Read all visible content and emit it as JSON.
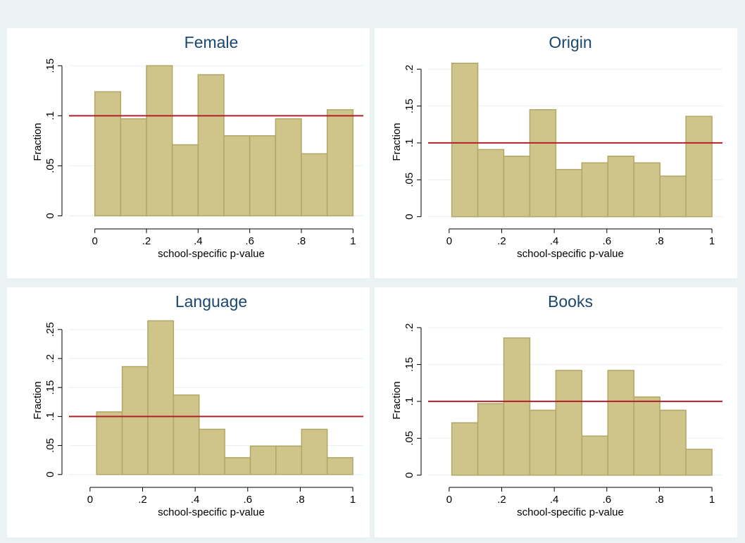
{
  "colors": {
    "figure_background": "#eaf2f3",
    "plot_background": "#ffffff",
    "bar_fill": "#cfc58a",
    "bar_edge": "#b0a766",
    "reference_line": "#b0202a",
    "grid": "#eaf2f3",
    "title": "#1a476f"
  },
  "chart_data": [
    {
      "type": "bar",
      "title": "Female",
      "xlabel": "school-specific p-value",
      "ylabel": "Fraction",
      "xlim": [
        -0.1,
        1.04
      ],
      "ylim": [
        -0.006,
        0.165
      ],
      "xticks": [
        0,
        0.2,
        0.4,
        0.6,
        0.8,
        1
      ],
      "xtick_labels": [
        "0",
        ".2",
        ".4",
        ".6",
        ".8",
        "1"
      ],
      "yticks": [
        0,
        0.05,
        0.1,
        0.15
      ],
      "ytick_labels": [
        "0",
        ".05",
        ".1",
        ".15"
      ],
      "bin_start": 0.0,
      "bin_width": 0.1,
      "values": [
        0.124,
        0.097,
        0.15,
        0.071,
        0.141,
        0.08,
        0.08,
        0.097,
        0.062,
        0.106
      ],
      "reference_line": 0.1,
      "grid": true
    },
    {
      "type": "bar",
      "title": "Origin",
      "xlabel": "school-specific p-value",
      "ylabel": "Fraction",
      "xlim": [
        -0.08,
        1.04
      ],
      "ylim": [
        -0.007,
        0.225
      ],
      "xticks": [
        0,
        0.2,
        0.4,
        0.6,
        0.8,
        1
      ],
      "xtick_labels": [
        "0",
        ".2",
        ".4",
        ".6",
        ".8",
        "1"
      ],
      "yticks": [
        0,
        0.05,
        0.1,
        0.15,
        0.2
      ],
      "ytick_labels": [
        "0",
        ".05",
        ".1",
        ".15",
        ".2"
      ],
      "bin_start": 0.01,
      "bin_width": 0.099,
      "values": [
        0.208,
        0.091,
        0.082,
        0.145,
        0.064,
        0.073,
        0.082,
        0.073,
        0.055,
        0.136
      ],
      "reference_line": 0.1,
      "grid": true
    },
    {
      "type": "bar",
      "title": "Language",
      "xlabel": "school-specific p-value",
      "ylabel": "Fraction",
      "xlim": [
        -0.08,
        1.04
      ],
      "ylim": [
        -0.01,
        0.285
      ],
      "xticks": [
        0,
        0.2,
        0.4,
        0.6,
        0.8,
        1
      ],
      "xtick_labels": [
        "0",
        ".2",
        ".4",
        ".6",
        ".8",
        "1"
      ],
      "yticks": [
        0,
        0.05,
        0.1,
        0.15,
        0.2,
        0.25
      ],
      "ytick_labels": [
        "0",
        ".05",
        ".1",
        ".15",
        ".2",
        ".25"
      ],
      "bin_start": 0.025,
      "bin_width": 0.0975,
      "values": [
        0.108,
        0.186,
        0.265,
        0.137,
        0.078,
        0.029,
        0.049,
        0.049,
        0.078,
        0.029
      ],
      "reference_line": 0.1,
      "grid": true
    },
    {
      "type": "bar",
      "title": "Books",
      "xlabel": "school-specific p-value",
      "ylabel": "Fraction",
      "xlim": [
        -0.08,
        1.04
      ],
      "ylim": [
        -0.007,
        0.225
      ],
      "xticks": [
        0,
        0.2,
        0.4,
        0.6,
        0.8,
        1
      ],
      "xtick_labels": [
        "0",
        ".2",
        ".4",
        ".6",
        ".8",
        "1"
      ],
      "yticks": [
        0,
        0.05,
        0.1,
        0.15,
        0.2
      ],
      "ytick_labels": [
        "0",
        ".05",
        ".1",
        ".15",
        ".2"
      ],
      "bin_start": 0.01,
      "bin_width": 0.099,
      "values": [
        0.071,
        0.097,
        0.186,
        0.088,
        0.142,
        0.053,
        0.142,
        0.106,
        0.088,
        0.035
      ],
      "reference_line": 0.1,
      "grid": true
    }
  ]
}
